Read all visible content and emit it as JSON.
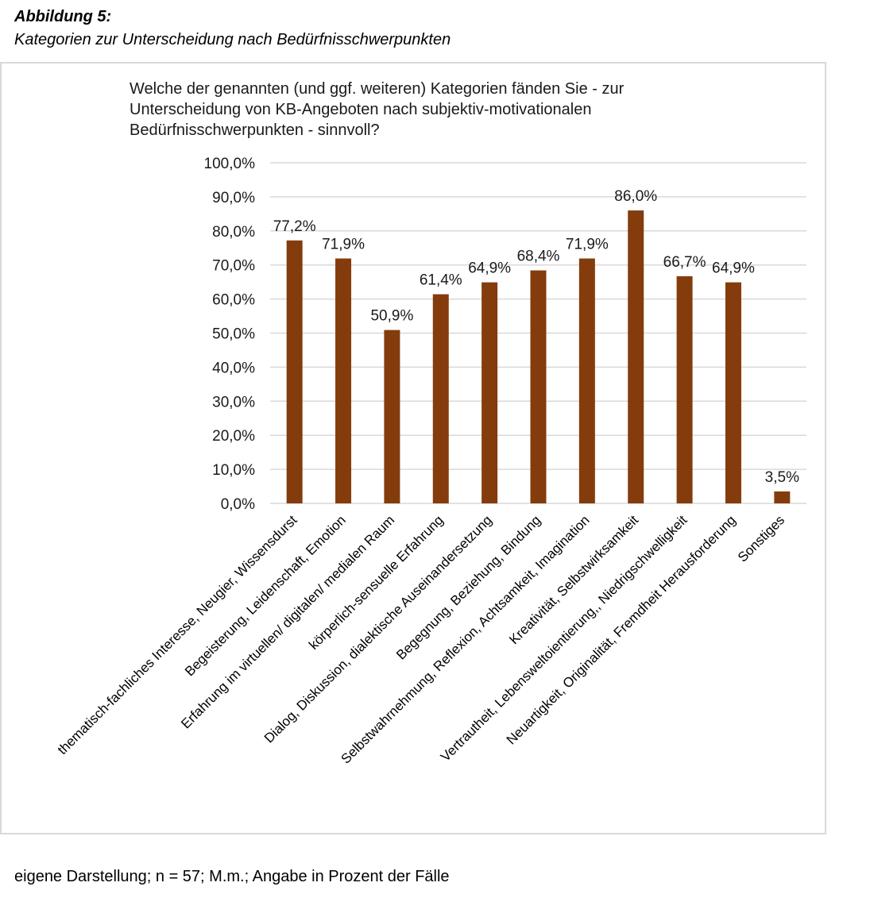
{
  "figure": {
    "label": "Abbildung 5:",
    "caption": "Kategorien zur Unterscheidung nach Bedürfnisschwerpunkten",
    "source_note": "eigene Darstellung; n = 57; M.m.; Angabe in Prozent der Fälle"
  },
  "colors": {
    "bar": "#843c0c",
    "grid": "#d9d9d9",
    "frame": "#d9d9d9"
  },
  "chart_data": {
    "type": "bar",
    "title": "Welche der genannten (und ggf. weiteren) Kategorien fänden Sie - zur Unterscheidung von KB-Angeboten nach subjektiv-motivationalen Bedürfnisschwerpunkten - sinnvoll?",
    "title_lines": [
      "Welche der genannten (und ggf. weiteren) Kategorien fänden Sie - zur",
      "Unterscheidung von KB-Angeboten nach subjektiv-motivationalen",
      "Bedürfnisschwerpunkten - sinnvoll?"
    ],
    "categories": [
      "thematisch-fachliches Interesse, Neugier, Wissensdurst",
      "Begeisterung, Leidenschaft, Emotion",
      "Erfahrung im virtuellen/ digitalen/ medialen Raum",
      "körperlich-sensuelle Erfahrung",
      "Dialog, Diskussion, dialektische Auseinandersetzung",
      "Begegnung, Beziehung, Bindung",
      "Selbstwahrnehmung, Reflexion, Achtsamkeit, Imagination",
      "Kreativität, Selbstwirksamkeit",
      "Vertrautheit, Lebensweltoientierung,, Niedrigschwelligkeit",
      "Neuartigkeit, Originalität, Fremdheit Herausforderung",
      "Sonstiges"
    ],
    "values": [
      77.2,
      71.9,
      50.9,
      61.4,
      64.9,
      68.4,
      71.9,
      86.0,
      66.7,
      64.9,
      3.5
    ],
    "data_labels": [
      "77,2%",
      "71,9%",
      "50,9%",
      "61,4%",
      "64,9%",
      "68,4%",
      "71,9%",
      "86,0%",
      "66,7%",
      "64,9%",
      "3,5%"
    ],
    "yticks": [
      0,
      10,
      20,
      30,
      40,
      50,
      60,
      70,
      80,
      90,
      100
    ],
    "ytick_labels": [
      "0,0%",
      "10,0%",
      "20,0%",
      "30,0%",
      "40,0%",
      "50,0%",
      "60,0%",
      "70,0%",
      "80,0%",
      "90,0%",
      "100,0%"
    ],
    "ylim": [
      0,
      100
    ],
    "xlabel": "",
    "ylabel": "",
    "grid": true,
    "legend": "none"
  }
}
